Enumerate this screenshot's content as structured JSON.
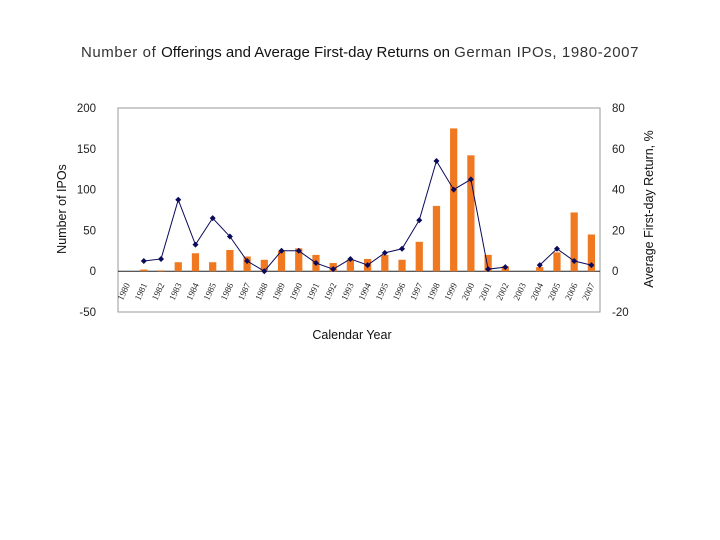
{
  "title": {
    "part1": "Number of ",
    "part2": "Offerings and Average First-day Returns",
    "part3": " on ",
    "part4": "German IPOs, 1980-2007"
  },
  "chart_data": {
    "type": "bar+line",
    "title": "Number of Offerings and Average First-day Returns on German IPOs, 1980-2007",
    "xlabel": "Calendar Year",
    "ylabel_left": "Number of IPOs",
    "ylabel_right": "Average First-day Return, %",
    "categories": [
      "1980",
      "1981",
      "1982",
      "1983",
      "1984",
      "1985",
      "1986",
      "1987",
      "1988",
      "1989",
      "1990",
      "1991",
      "1992",
      "1993",
      "1994",
      "1995",
      "1996",
      "1997",
      "1998",
      "1999",
      "2000",
      "2001",
      "2002",
      "2003",
      "2004",
      "2005",
      "2006",
      "2007"
    ],
    "ylim_left": [
      -50,
      200
    ],
    "yticks_left": [
      -50,
      0,
      50,
      100,
      150,
      200
    ],
    "ylim_right": [
      -20,
      80
    ],
    "yticks_right": [
      -20,
      0,
      20,
      40,
      60,
      80
    ],
    "series": [
      {
        "name": "Number of IPOs",
        "type": "bar",
        "axis": "left",
        "color": "#f07820",
        "values": [
          0,
          2,
          1,
          11,
          22,
          11,
          26,
          18,
          14,
          25,
          28,
          20,
          10,
          14,
          15,
          20,
          14,
          36,
          80,
          175,
          142,
          20,
          6,
          0,
          5,
          23,
          72,
          45
        ]
      },
      {
        "name": "Average First-day Return",
        "type": "line",
        "axis": "right",
        "color": "#0a0a5c",
        "values": [
          null,
          5,
          6,
          35,
          13,
          26,
          17,
          5,
          0,
          10,
          10,
          4,
          1,
          6,
          3,
          9,
          11,
          25,
          54,
          40,
          45,
          1,
          2,
          null,
          3,
          11,
          5,
          3
        ]
      }
    ]
  }
}
